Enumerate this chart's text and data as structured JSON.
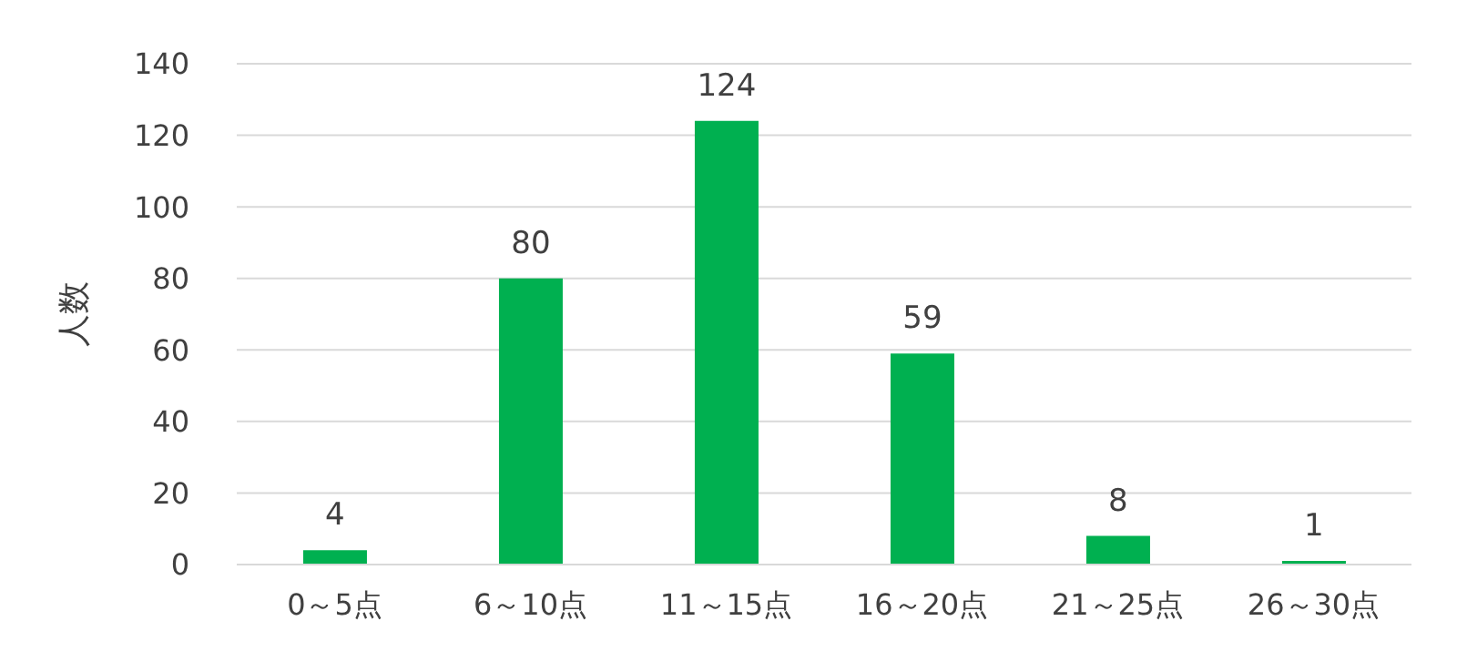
{
  "chart_data": {
    "type": "bar",
    "ylabel": "人数",
    "categories": [
      "0～5点",
      "6～10点",
      "11～15点",
      "16～20点",
      "21～25点",
      "26～30点"
    ],
    "values": [
      4,
      80,
      124,
      59,
      8,
      1
    ],
    "color": "#00b050",
    "ylim": [
      0,
      140
    ],
    "yticks": [
      0,
      20,
      40,
      60,
      80,
      100,
      120,
      140
    ],
    "grid": "y",
    "data_labels": true
  }
}
